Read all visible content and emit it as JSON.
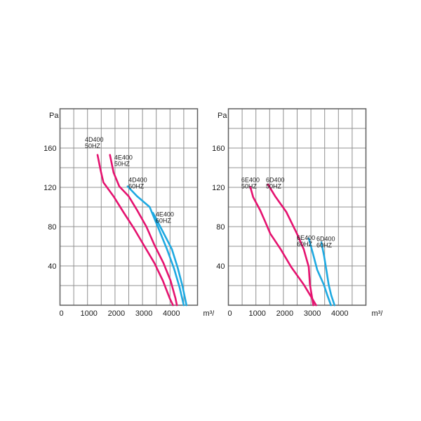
{
  "page": {
    "background": "#ffffff"
  },
  "colors": {
    "grid": "#909090",
    "border": "#5f5f5f",
    "text": "#1a1a1a",
    "pink": "#e5126f",
    "blue": "#1ea9e1"
  },
  "chart_data": [
    {
      "type": "line",
      "title": "",
      "y_unit": "Pa",
      "x_unit": "m³/h",
      "xlim": [
        0,
        5000
      ],
      "ylim": [
        0,
        200
      ],
      "grid": true,
      "x_grid_step": 500,
      "y_grid_step": 20,
      "x_tick_values": [
        0,
        1000,
        2000,
        3000,
        4000
      ],
      "x_tick_labels": [
        "0",
        "1000",
        "2000",
        "3000",
        "4000"
      ],
      "y_tick_values": [
        40,
        80,
        120,
        160
      ],
      "y_tick_labels": [
        "40",
        "80",
        "120",
        "160"
      ],
      "legend_position": "inline-labels",
      "series": [
        {
          "name": "4D400 50HZ",
          "label_lines": [
            "4D400",
            "50HZ"
          ],
          "color": "#e5126f",
          "label_anchor": [
            905,
            172
          ],
          "points": [
            [
              1365,
              153
            ],
            [
              1480,
              137
            ],
            [
              1580,
              125
            ],
            [
              1945,
              111
            ],
            [
              2300,
              95
            ],
            [
              2670,
              79
            ],
            [
              3050,
              61
            ],
            [
              3430,
              43
            ],
            [
              3740,
              25
            ],
            [
              3990,
              7
            ],
            [
              4110,
              0
            ]
          ]
        },
        {
          "name": "4E400 50HZ",
          "label_lines": [
            "4E400",
            "50HZ"
          ],
          "color": "#e5126f",
          "label_anchor": [
            1975,
            154
          ],
          "points": [
            [
              1816,
              153
            ],
            [
              1950,
              135
            ],
            [
              2156,
              121
            ],
            [
              2495,
              111
            ],
            [
              2820,
              96
            ],
            [
              3140,
              80
            ],
            [
              3440,
              61
            ],
            [
              3760,
              43
            ],
            [
              4020,
              25
            ],
            [
              4200,
              7
            ],
            [
              4250,
              0
            ]
          ]
        },
        {
          "name": "4D400 60HZ",
          "label_lines": [
            "4D400",
            "60HZ"
          ],
          "color": "#1ea9e1",
          "label_anchor": [
            2490,
            131
          ],
          "points": [
            [
              2460,
              121
            ],
            [
              2800,
              111
            ],
            [
              3260,
              100
            ],
            [
              3600,
              77
            ],
            [
              3890,
              57
            ],
            [
              4150,
              37
            ],
            [
              4350,
              18
            ],
            [
              4500,
              0
            ]
          ]
        },
        {
          "name": "4E400 60HZ",
          "label_lines": [
            "4E400",
            "60HZ"
          ],
          "color": "#1ea9e1",
          "label_anchor": [
            3480,
            96
          ],
          "points": [
            [
              3380,
              94
            ],
            [
              3720,
              76
            ],
            [
              4070,
              57
            ],
            [
              4280,
              38
            ],
            [
              4450,
              20
            ],
            [
              4600,
              0
            ]
          ]
        }
      ]
    },
    {
      "type": "line",
      "title": "",
      "y_unit": "Pa",
      "x_unit": "m³/h",
      "xlim": [
        0,
        5000
      ],
      "ylim": [
        0,
        200
      ],
      "grid": true,
      "x_grid_step": 500,
      "y_grid_step": 20,
      "x_tick_values": [
        0,
        1000,
        2000,
        3000,
        4000
      ],
      "x_tick_labels": [
        "0",
        "1000",
        "2000",
        "3000",
        "4000"
      ],
      "y_tick_values": [
        40,
        80,
        120,
        160
      ],
      "y_tick_labels": [
        "40",
        "80",
        "120",
        "160"
      ],
      "legend_position": "inline-labels",
      "series": [
        {
          "name": "6E400 50HZ",
          "label_lines": [
            "6E400",
            "50HZ"
          ],
          "color": "#e5126f",
          "label_anchor": [
            470,
            131
          ],
          "points": [
            [
              800,
              120
            ],
            [
              900,
              110
            ],
            [
              1150,
              97
            ],
            [
              1340,
              85
            ],
            [
              1520,
              73
            ],
            [
              1900,
              57
            ],
            [
              2280,
              39
            ],
            [
              2740,
              21
            ],
            [
              3000,
              9
            ],
            [
              3190,
              0
            ]
          ]
        },
        {
          "name": "6D400 50HZ",
          "label_lines": [
            "6D400",
            "50HZ"
          ],
          "color": "#e5126f",
          "label_anchor": [
            1365,
            131
          ],
          "points": [
            [
              1440,
              123
            ],
            [
              1700,
              111
            ],
            [
              2105,
              95
            ],
            [
              2490,
              73
            ],
            [
              2740,
              57
            ],
            [
              2920,
              39
            ],
            [
              2965,
              21
            ],
            [
              3090,
              0
            ]
          ]
        },
        {
          "name": "6E400 60HZ",
          "label_lines": [
            "6E400",
            "60HZ"
          ],
          "color": "#1ea9e1",
          "label_anchor": [
            2490,
            72
          ],
          "points": [
            [
              2920,
              68
            ],
            [
              3080,
              52
            ],
            [
              3230,
              36
            ],
            [
              3470,
              21
            ],
            [
              3600,
              10
            ],
            [
              3730,
              0
            ]
          ]
        },
        {
          "name": "6D400 60HZ",
          "label_lines": [
            "6D400",
            "60HZ"
          ],
          "color": "#1ea9e1",
          "label_anchor": [
            3200,
            71
          ],
          "points": [
            [
              3380,
              64
            ],
            [
              3480,
              50
            ],
            [
              3560,
              36
            ],
            [
              3645,
              21
            ],
            [
              3740,
              10
            ],
            [
              3860,
              0
            ]
          ]
        }
      ]
    }
  ]
}
